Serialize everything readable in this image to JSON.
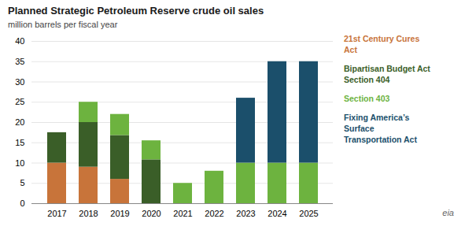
{
  "chart_data": {
    "type": "bar",
    "stacked": true,
    "title": "Planned Strategic Petroleum Reserve crude oil sales",
    "subtitle": "million barrels per fiscal year",
    "categories": [
      "2017",
      "2018",
      "2019",
      "2020",
      "2021",
      "2022",
      "2023",
      "2024",
      "2025"
    ],
    "series": [
      {
        "name": "21st Century Cures\nAct",
        "color": "#c8743a",
        "values": [
          10,
          9,
          6,
          0,
          0,
          0,
          0,
          0,
          0
        ]
      },
      {
        "name": "Bipartisan Budget Act\nSection 404",
        "color": "#3a5e28",
        "values": [
          7.5,
          11,
          10.8,
          10.8,
          0,
          0,
          0,
          0,
          0
        ]
      },
      {
        "name": "Section 403",
        "color": "#6db33f",
        "values": [
          0,
          5,
          5.2,
          4.7,
          5,
          8,
          10,
          10,
          10
        ]
      },
      {
        "name": "Fixing America’s\nSurface\nTransportation Act",
        "color": "#1b4f6b",
        "values": [
          0,
          0,
          0,
          0,
          0,
          0,
          16,
          25,
          25
        ]
      }
    ],
    "ylim": [
      0,
      40
    ],
    "yticks": [
      0,
      5,
      10,
      15,
      20,
      25,
      30,
      35,
      40
    ],
    "grid": true,
    "legend": "right",
    "annotations": [
      "eia"
    ]
  }
}
